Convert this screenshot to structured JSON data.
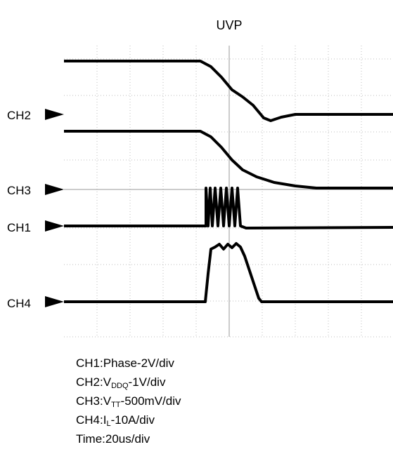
{
  "title": "UVP",
  "channels": [
    "CH2",
    "CH3",
    "CH1",
    "CH4"
  ],
  "notes": [
    "CH1:Phase-2V/div",
    {
      "prefix": "CH2:V",
      "sub": "DDQ",
      "suffix": "-1V/div"
    },
    {
      "prefix": "CH3:V",
      "sub": "TT",
      "suffix": "-500mV/div"
    },
    {
      "prefix": "CH4:I",
      "sub": "L",
      "suffix": "-10A/div"
    },
    "Time:20us/div"
  ]
}
